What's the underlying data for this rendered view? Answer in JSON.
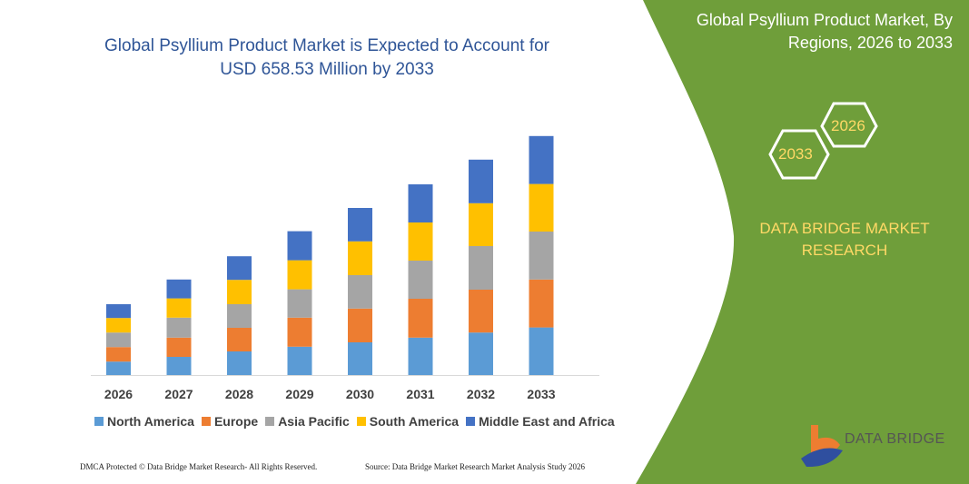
{
  "title": "Global Psyllium Product Market is Expected to Account for USD 658.53 Million by 2033",
  "side_panel": {
    "title": "Global Psyllium Product Market, By Regions, 2026 to 2033",
    "hex_start": "2026",
    "hex_end": "2033",
    "brand_text": "DATA BRIDGE MARKET RESEARCH",
    "logo_text": "DATA BRIDGE",
    "color": "#6f9e3a"
  },
  "footer": {
    "left": "DMCA Protected © Data Bridge Market Research-  All Rights Reserved.",
    "right": "Source: Data Bridge Market Research  Market Analysis Study 2026"
  },
  "chart_data": {
    "type": "bar",
    "stacked": true,
    "title": "Global Psyllium Product Market is Expected to Account for USD 658.53 Million by 2033",
    "xlabel": "",
    "ylabel": "",
    "grid": false,
    "legend_position": "bottom",
    "ylim": [
      0,
      700
    ],
    "categories": [
      "2026",
      "2027",
      "2028",
      "2029",
      "2030",
      "2031",
      "2032",
      "2033"
    ],
    "series": [
      {
        "name": "North America",
        "color": "#5b9bd5",
        "values": [
          37,
          50,
          65,
          78,
          90,
          103,
          117,
          131
        ]
      },
      {
        "name": "Europe",
        "color": "#ed7d31",
        "values": [
          40,
          53,
          65,
          80,
          93,
          107,
          118,
          132
        ]
      },
      {
        "name": "Asia Pacific",
        "color": "#a5a5a5",
        "values": [
          40,
          55,
          65,
          78,
          92,
          105,
          120,
          132
        ]
      },
      {
        "name": "South America",
        "color": "#ffc000",
        "values": [
          40,
          53,
          67,
          80,
          93,
          105,
          118,
          131
        ]
      },
      {
        "name": "Middle East and Africa",
        "color": "#4472c4",
        "values": [
          38,
          52,
          65,
          80,
          92,
          105,
          120,
          132
        ]
      }
    ]
  }
}
